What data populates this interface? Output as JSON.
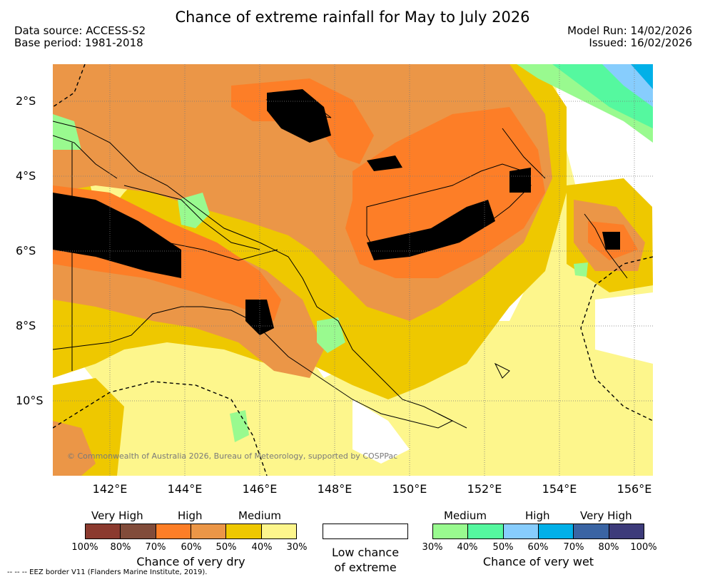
{
  "title": "Chance of extreme rainfall for May to July 2026",
  "meta": {
    "data_source": "Data source: ACCESS-S2",
    "base_period": "Base period: 1981-2018",
    "model_run": "Model Run: 14/02/2026",
    "issued": "Issued: 16/02/2026"
  },
  "map": {
    "lat_ticks": [
      "2°S",
      "4°S",
      "6°S",
      "8°S",
      "10°S"
    ],
    "lon_ticks": [
      "142°E",
      "144°E",
      "146°E",
      "148°E",
      "150°E",
      "152°E",
      "154°E",
      "156°E"
    ],
    "copyright": "© Commonwealth of Australia 2026, Bureau of Meteorology, supported by COSPPac",
    "colors": {
      "very_dry_100": "#8b3a2f",
      "very_dry_80": "#814c3a",
      "dry_70": "#fd7e27",
      "dry_60": "#eb9647",
      "dry_50": "#eec800",
      "dry_40": "#fdf68c",
      "wet_30": "#99fa8f",
      "wet_40": "#55f89f",
      "wet_50": "#87cdfd",
      "wet_60": "#01b0e8"
    }
  },
  "legend": {
    "dry": {
      "categories": [
        "Very High",
        "High",
        "Medium"
      ],
      "colors": [
        "#8b3a2f",
        "#814c3a",
        "#fd7e27",
        "#eb9647",
        "#eec800",
        "#fdf68c"
      ],
      "ticks": [
        "100%",
        "80%",
        "70%",
        "60%",
        "50%",
        "40%",
        "30%"
      ],
      "title": "Chance of very dry"
    },
    "low": {
      "title_line1": "Low chance",
      "title_line2": "of extreme",
      "color": "#ffffff"
    },
    "wet": {
      "categories": [
        "Medium",
        "High",
        "Very High"
      ],
      "colors": [
        "#99fa8f",
        "#55f89f",
        "#87cdfd",
        "#01b0e8",
        "#3a64a3",
        "#3d3b7a"
      ],
      "ticks": [
        "30%",
        "40%",
        "50%",
        "60%",
        "70%",
        "80%",
        "100%"
      ],
      "title": "Chance of very wet"
    }
  },
  "footer": "--  --  -- EEZ border V11 (Flanders Marine Institute, 2019)."
}
